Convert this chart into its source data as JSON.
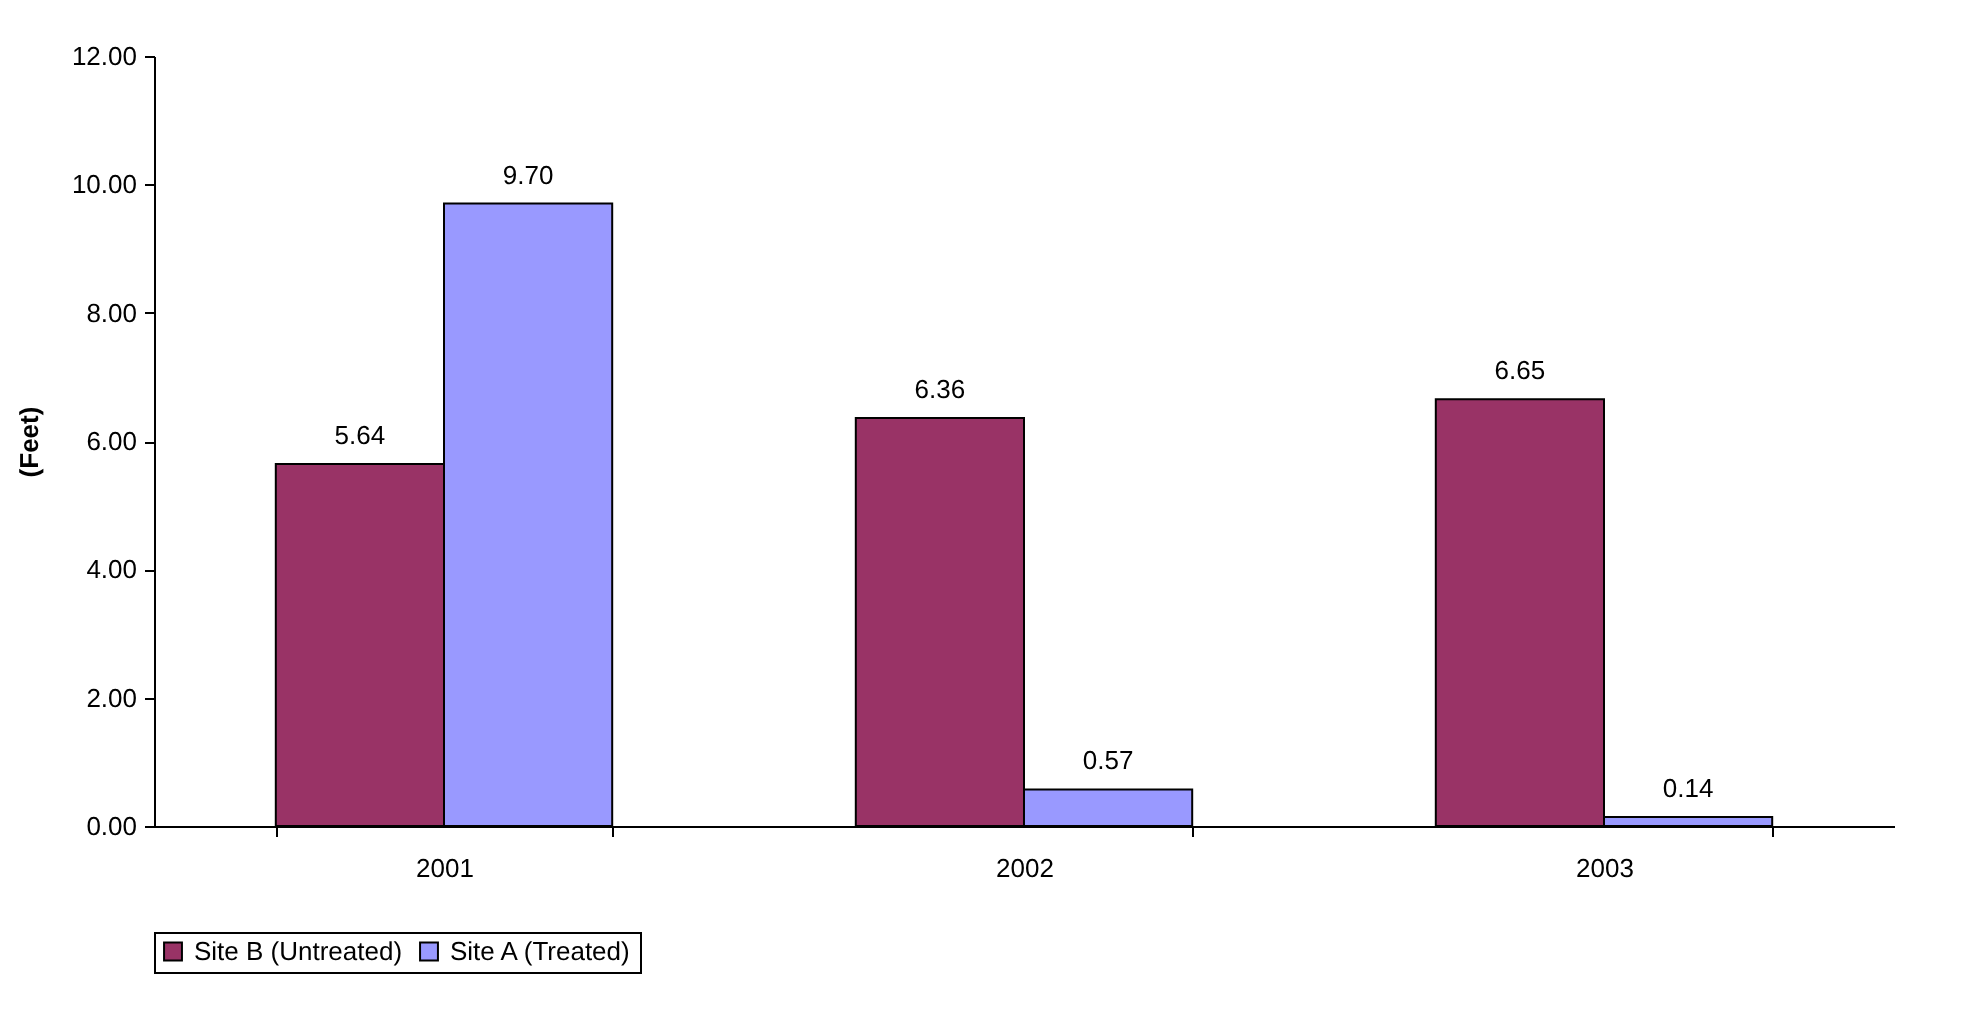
{
  "chart_data": {
    "type": "bar",
    "ylabel": "(Feet)",
    "categories": [
      "2001",
      "2002",
      "2003"
    ],
    "series": [
      {
        "name": "Site B (Untreated)",
        "color": "#993366",
        "values": [
          5.64,
          6.36,
          6.65
        ],
        "value_labels": [
          "5.64",
          "6.36",
          "6.65"
        ]
      },
      {
        "name": "Site A (Treated)",
        "color": "#9999ff",
        "values": [
          9.7,
          0.57,
          0.14
        ],
        "value_labels": [
          "9.70",
          "0.57",
          "0.14"
        ]
      }
    ],
    "ylim": [
      0,
      12
    ],
    "yticks": [
      {
        "value": 0,
        "label": "0.00"
      },
      {
        "value": 2,
        "label": "2.00"
      },
      {
        "value": 4,
        "label": "4.00"
      },
      {
        "value": 6,
        "label": "6.00"
      },
      {
        "value": 8,
        "label": "8.00"
      },
      {
        "value": 10,
        "label": "10.00"
      },
      {
        "value": 12,
        "label": "12.00"
      }
    ],
    "grid": false,
    "legend": "bottom"
  }
}
